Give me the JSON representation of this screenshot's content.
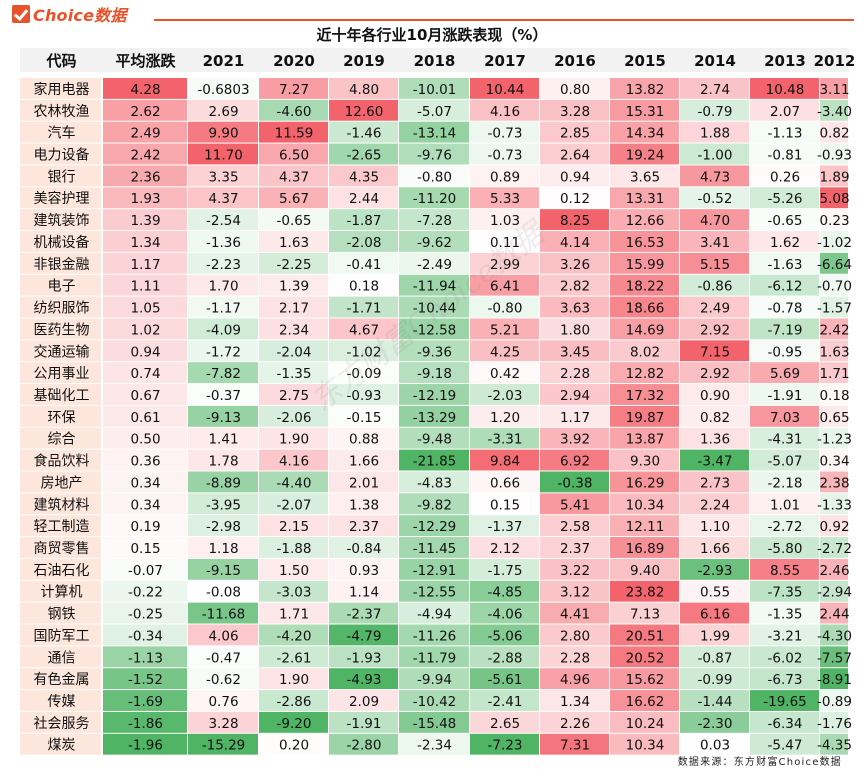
{
  "brand": {
    "name": "Choice数据",
    "accent": "#e8532c"
  },
  "source": "数据来源：东方财富Choice数据",
  "watermark": "东方财富Choice数据",
  "chart_data": {
    "type": "table",
    "title": "近十年各行业10月涨跌表现（%）",
    "columns": [
      "代码",
      "平均涨跌",
      "2021",
      "2020",
      "2019",
      "2018",
      "2017",
      "2016",
      "2015",
      "2014",
      "2013",
      "2012"
    ],
    "rows": [
      [
        "家用电器",
        "4.28",
        "-0.6803",
        "7.27",
        "4.80",
        "-10.01",
        "10.44",
        "0.80",
        "13.82",
        "2.74",
        "10.48",
        "3.11"
      ],
      [
        "农林牧渔",
        "2.62",
        "2.69",
        "-4.60",
        "12.60",
        "-5.07",
        "4.16",
        "3.28",
        "15.31",
        "-0.79",
        "2.07",
        "-3.40"
      ],
      [
        "汽车",
        "2.49",
        "9.90",
        "11.59",
        "-1.46",
        "-13.14",
        "-0.73",
        "2.85",
        "14.34",
        "1.88",
        "-1.13",
        "0.82"
      ],
      [
        "电力设备",
        "2.42",
        "11.70",
        "6.50",
        "-2.65",
        "-9.76",
        "-0.73",
        "2.64",
        "19.24",
        "-1.00",
        "-0.81",
        "-0.93"
      ],
      [
        "银行",
        "2.36",
        "3.35",
        "4.37",
        "4.35",
        "-0.80",
        "0.89",
        "0.94",
        "3.65",
        "4.73",
        "0.26",
        "1.89"
      ],
      [
        "美容护理",
        "1.93",
        "4.37",
        "5.67",
        "2.44",
        "-11.20",
        "5.33",
        "0.12",
        "13.31",
        "-0.52",
        "-5.26",
        "5.08"
      ],
      [
        "建筑装饰",
        "1.39",
        "-2.54",
        "-0.65",
        "-1.87",
        "-7.28",
        "1.03",
        "8.25",
        "12.66",
        "4.70",
        "-0.65",
        "0.23"
      ],
      [
        "机械设备",
        "1.34",
        "-1.36",
        "1.63",
        "-2.08",
        "-9.62",
        "0.11",
        "4.14",
        "16.53",
        "3.41",
        "1.62",
        "-1.02"
      ],
      [
        "非银金融",
        "1.17",
        "-2.23",
        "-2.25",
        "-0.41",
        "-2.49",
        "2.99",
        "3.26",
        "15.99",
        "5.15",
        "-1.63",
        "-6.64"
      ],
      [
        "电子",
        "1.11",
        "1.70",
        "1.39",
        "0.18",
        "-11.94",
        "6.41",
        "2.82",
        "18.22",
        "-0.86",
        "-6.12",
        "-0.70"
      ],
      [
        "纺织服饰",
        "1.05",
        "-1.17",
        "2.17",
        "-1.71",
        "-10.44",
        "-0.80",
        "3.63",
        "18.66",
        "2.49",
        "-0.78",
        "-1.57"
      ],
      [
        "医药生物",
        "1.02",
        "-4.09",
        "2.34",
        "4.67",
        "-12.58",
        "5.21",
        "1.80",
        "14.69",
        "2.92",
        "-7.19",
        "2.42"
      ],
      [
        "交通运输",
        "0.94",
        "-1.72",
        "-2.04",
        "-1.02",
        "-9.36",
        "4.25",
        "3.45",
        "8.02",
        "7.15",
        "-0.95",
        "1.63"
      ],
      [
        "公用事业",
        "0.74",
        "-7.82",
        "-1.35",
        "-0.09",
        "-9.18",
        "0.42",
        "2.28",
        "12.82",
        "2.92",
        "5.69",
        "1.71"
      ],
      [
        "基础化工",
        "0.67",
        "-0.37",
        "2.75",
        "-0.93",
        "-12.19",
        "-2.03",
        "2.94",
        "17.32",
        "0.90",
        "-1.91",
        "0.18"
      ],
      [
        "环保",
        "0.61",
        "-9.13",
        "-2.06",
        "-0.15",
        "-13.29",
        "1.20",
        "1.17",
        "19.87",
        "0.82",
        "7.03",
        "0.65"
      ],
      [
        "综合",
        "0.50",
        "1.41",
        "1.90",
        "0.88",
        "-9.48",
        "-3.31",
        "3.92",
        "13.87",
        "1.36",
        "-4.31",
        "-1.23"
      ],
      [
        "食品饮料",
        "0.36",
        "1.78",
        "4.16",
        "1.66",
        "-21.85",
        "9.84",
        "6.92",
        "9.30",
        "-3.47",
        "-5.07",
        "0.34"
      ],
      [
        "房地产",
        "0.34",
        "-8.89",
        "-4.40",
        "2.01",
        "-4.83",
        "0.66",
        "-0.38",
        "16.29",
        "2.73",
        "-2.18",
        "2.38"
      ],
      [
        "建筑材料",
        "0.34",
        "-3.95",
        "-2.07",
        "1.38",
        "-9.82",
        "0.15",
        "5.41",
        "10.34",
        "2.24",
        "1.01",
        "-1.33"
      ],
      [
        "轻工制造",
        "0.19",
        "-2.98",
        "2.15",
        "2.37",
        "-12.29",
        "-1.37",
        "2.58",
        "12.11",
        "1.10",
        "-2.72",
        "0.92"
      ],
      [
        "商贸零售",
        "0.15",
        "1.18",
        "-1.88",
        "-0.84",
        "-11.45",
        "2.12",
        "2.37",
        "16.89",
        "1.66",
        "-5.80",
        "-2.72"
      ],
      [
        "石油石化",
        "-0.07",
        "-9.15",
        "1.50",
        "0.93",
        "-12.91",
        "-1.75",
        "3.22",
        "9.40",
        "-2.93",
        "8.55",
        "2.46"
      ],
      [
        "计算机",
        "-0.22",
        "-0.08",
        "-3.03",
        "1.14",
        "-12.55",
        "-4.85",
        "3.12",
        "23.82",
        "0.55",
        "-7.35",
        "-2.94"
      ],
      [
        "钢铁",
        "-0.25",
        "-11.68",
        "1.71",
        "-2.37",
        "-4.94",
        "-4.06",
        "4.41",
        "7.13",
        "6.16",
        "-1.35",
        "2.44"
      ],
      [
        "国防军工",
        "-0.34",
        "4.06",
        "-4.20",
        "-4.79",
        "-11.26",
        "-5.06",
        "2.80",
        "20.51",
        "1.99",
        "-3.21",
        "-4.30"
      ],
      [
        "通信",
        "-1.13",
        "-0.47",
        "-2.61",
        "-1.93",
        "-11.79",
        "-2.88",
        "2.28",
        "20.52",
        "-0.87",
        "-6.02",
        "-7.57"
      ],
      [
        "有色金属",
        "-1.52",
        "-0.62",
        "1.90",
        "-4.93",
        "-9.94",
        "-5.61",
        "4.96",
        "15.62",
        "-0.99",
        "-6.73",
        "-8.91"
      ],
      [
        "传媒",
        "-1.69",
        "0.76",
        "-2.86",
        "2.09",
        "-10.42",
        "-2.41",
        "1.34",
        "16.62",
        "-1.44",
        "-19.65",
        "-0.89"
      ],
      [
        "社会服务",
        "-1.86",
        "3.28",
        "-9.20",
        "-1.91",
        "-15.48",
        "2.65",
        "2.26",
        "10.24",
        "-2.30",
        "-6.34",
        "-1.76"
      ],
      [
        "煤炭",
        "-1.96",
        "-15.29",
        "0.20",
        "-2.80",
        "-2.34",
        "-7.23",
        "7.31",
        "10.34",
        "0.03",
        "-5.47",
        "-4.35"
      ]
    ],
    "color_scale": {
      "negative": "#4fb464",
      "zero": "#ffffff",
      "positive": "#f3636c"
    }
  }
}
